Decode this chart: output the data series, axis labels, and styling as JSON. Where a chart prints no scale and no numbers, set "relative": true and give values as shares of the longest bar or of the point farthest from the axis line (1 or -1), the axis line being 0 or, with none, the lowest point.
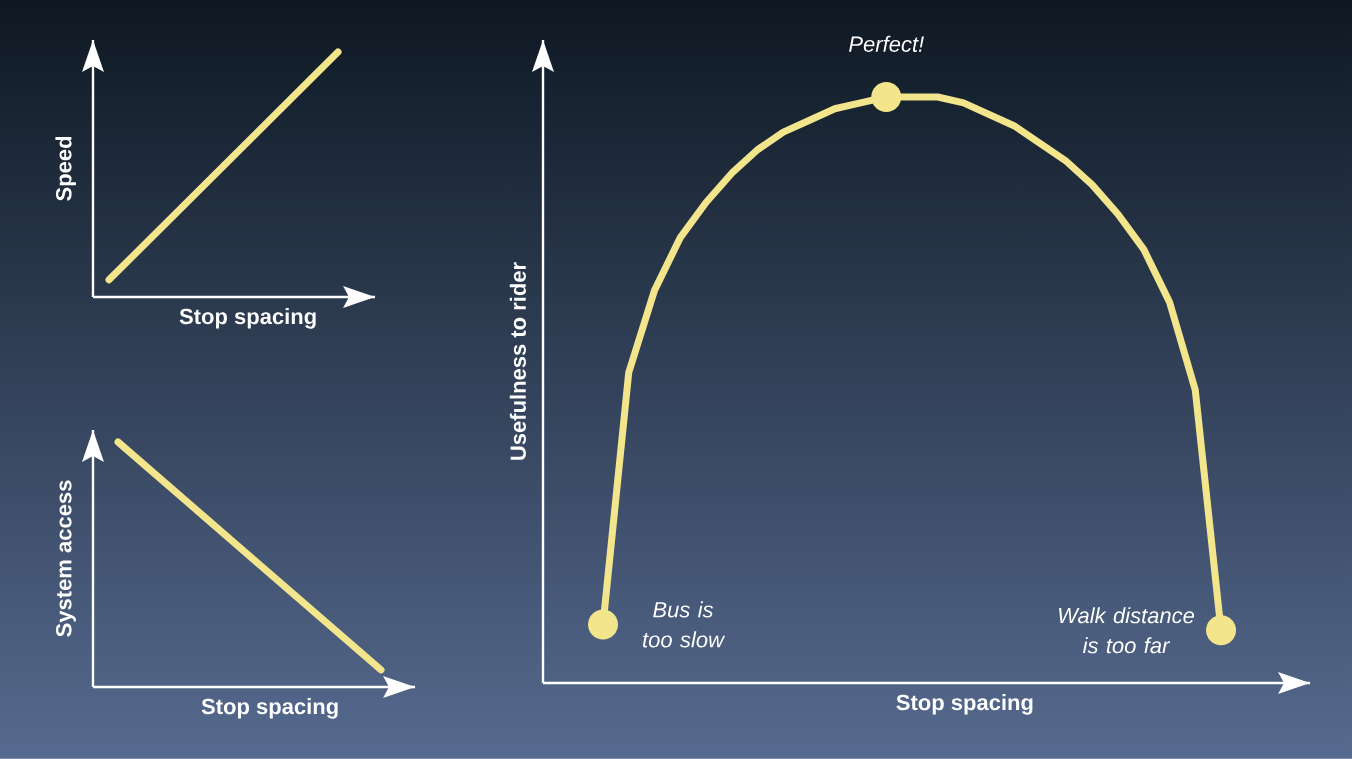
{
  "chart_data": [
    {
      "type": "line",
      "relative": true,
      "xlabel": "Stop spacing",
      "ylabel": "Speed",
      "categories": [
        null,
        null
      ],
      "color": "#f3e58c",
      "values": [
        0.07,
        1
      ]
    },
    {
      "type": "line",
      "relative": true,
      "xlabel": "Stop spacing",
      "ylabel": "System access",
      "categories": [
        null,
        null
      ],
      "color": "#f3e58c",
      "values": [
        1,
        0.07
      ]
    },
    {
      "type": "line",
      "relative": true,
      "xlabel": "Stop spacing",
      "ylabel": "Usefulness to rider",
      "categories": [
        null,
        null,
        null,
        null,
        null,
        null,
        null,
        null,
        null,
        null,
        null,
        null,
        null,
        null,
        null,
        null,
        null,
        null,
        null,
        null,
        null,
        null,
        null,
        null,
        null
      ],
      "color": "#f3e58c",
      "annotations": [
        {
          "text": "Perfect!",
          "y": 1
        },
        "Bus is too slow",
        "Walk distance is too far"
      ],
      "values": [
        0.1,
        0.53,
        0.67,
        0.76,
        0.82,
        0.87,
        0.91,
        0.94,
        0.96,
        0.98,
        0.99,
        1,
        1,
        1,
        0.99,
        0.97,
        0.95,
        0.92,
        0.89,
        0.85,
        0.8,
        0.74,
        0.65,
        0.5,
        0.09
      ]
    }
  ]
}
